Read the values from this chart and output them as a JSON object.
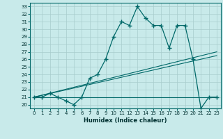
{
  "xlabel": "Humidex (Indice chaleur)",
  "ylabel": "",
  "xlim": [
    -0.5,
    23.5
  ],
  "ylim": [
    19.5,
    33.5
  ],
  "xticks": [
    0,
    1,
    2,
    3,
    4,
    5,
    6,
    7,
    8,
    9,
    10,
    11,
    12,
    13,
    14,
    15,
    16,
    17,
    18,
    19,
    20,
    21,
    22,
    23
  ],
  "yticks": [
    20,
    21,
    22,
    23,
    24,
    25,
    26,
    27,
    28,
    29,
    30,
    31,
    32,
    33
  ],
  "bg_color": "#c8eaea",
  "grid_color": "#a8cccc",
  "line_color": "#006868",
  "line1_x": [
    0,
    1,
    2,
    3,
    4,
    5,
    6,
    7,
    8,
    9,
    10,
    11,
    12,
    13,
    14,
    15,
    16,
    17,
    18,
    19,
    20,
    21,
    22,
    23
  ],
  "line1_y": [
    21.0,
    21.0,
    21.5,
    21.0,
    20.5,
    20.0,
    21.0,
    23.5,
    24.0,
    26.0,
    29.0,
    31.0,
    30.5,
    33.0,
    31.5,
    30.5,
    30.5,
    27.5,
    30.5,
    30.5,
    26.0,
    19.5,
    21.0,
    21.0
  ],
  "line2_x": [
    0,
    23
  ],
  "line2_y": [
    21.0,
    21.0
  ],
  "line3_x": [
    0,
    23
  ],
  "line3_y": [
    21.0,
    26.5
  ],
  "line4_x": [
    0,
    23
  ],
  "line4_y": [
    21.0,
    27.0
  ]
}
